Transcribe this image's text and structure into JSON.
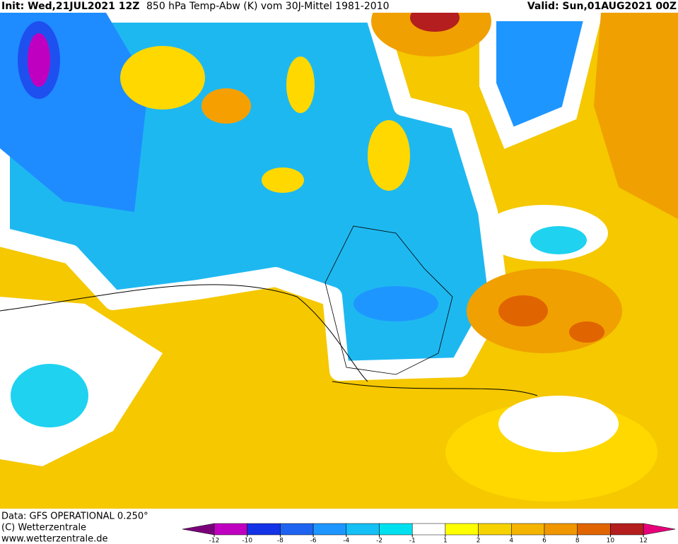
{
  "header": {
    "init": "Init: Wed,21JUL2021 12Z",
    "title": "850 hPa Temp-Abw (K) vom 30J-Mittel 1981-2010",
    "valid": "Valid: Sun,01AUG2021 00Z"
  },
  "footer": {
    "source": "Data: GFS OPERATIONAL 0.250°",
    "copyright": "(C) Wetterzentrale",
    "url": "www.wetterzentrale.de"
  },
  "colorbar": {
    "ticks": [
      -12,
      -10,
      -8,
      -6,
      -4,
      -2,
      -1,
      1,
      2,
      4,
      6,
      8,
      10,
      12
    ],
    "colors": [
      "#7a007a",
      "#c000c0",
      "#1432e6",
      "#1e64f0",
      "#1e96ff",
      "#14c0f5",
      "#00e1f0",
      "#ffffff",
      "#ffff00",
      "#f5d200",
      "#f5b400",
      "#f09600",
      "#e06400",
      "#b41e1e",
      "#e6007a"
    ]
  }
}
